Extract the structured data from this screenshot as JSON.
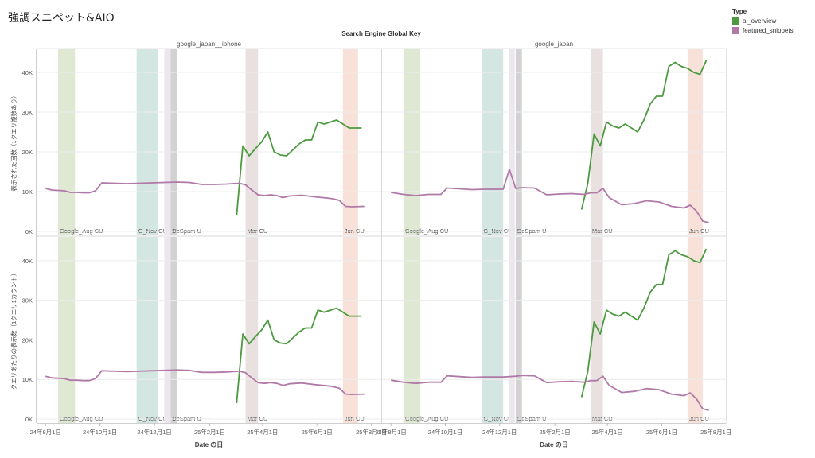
{
  "page_title": "強調スニペット&AIO",
  "legend": {
    "title": "Type",
    "items": [
      {
        "label": "ai_overview",
        "color": "#4c9a3f"
      },
      {
        "label": "featured_snippets",
        "color": "#b079a7"
      }
    ]
  },
  "chart_data": {
    "type": "line",
    "column_header_title": "Search Engine Global Key",
    "columns": [
      "google_japan__iphone",
      "google_japan"
    ],
    "row_labels": [
      "表示された回数（1クエリ複数あり）",
      "クエリあたりの表示数（1クエリ1カウント）"
    ],
    "xlabel": "Date の日",
    "x_ticks": [
      "24年8月1日",
      "24年10月1日",
      "24年12月1日",
      "25年2月1日",
      "25年4月1日",
      "25年6月1日",
      "25年8月1日"
    ],
    "y_ticks": [
      "0K",
      "10K",
      "20K",
      "30K",
      "40K"
    ],
    "ylim": [
      0,
      45000
    ],
    "x_range": [
      "2024-07-22",
      "2025-08-12"
    ],
    "grid": true,
    "bands": [
      {
        "label": "Google_Aug CU",
        "start": "2024-08-15",
        "end": "2024-09-03",
        "color": "#dfe8d3"
      },
      {
        "label": "G_Nov CU",
        "start": "2024-11-11",
        "end": "2024-12-05",
        "color": "#d3e6e2"
      },
      {
        "label": "",
        "start": "2024-12-12",
        "end": "2024-12-18",
        "color": "#ece6ee"
      },
      {
        "label": "DeSpam U",
        "start": "2024-12-19",
        "end": "2024-12-26",
        "color": "#d2d2d2"
      },
      {
        "label": "Mar CU",
        "start": "2025-03-13",
        "end": "2025-03-27",
        "color": "#e8e1e0"
      },
      {
        "label": "Jun CU",
        "start": "2025-06-30",
        "end": "2025-07-17",
        "color": "#f8e1d8"
      }
    ],
    "panels": [
      {
        "column": "google_japan__iphone",
        "row": "表示された回数（1クエリ複数あり）",
        "series": [
          {
            "name": "ai_overview",
            "x": [
              "2025-03-03",
              "2025-03-10",
              "2025-03-17",
              "2025-03-24",
              "2025-03-31",
              "2025-04-07",
              "2025-04-14",
              "2025-04-21",
              "2025-04-28",
              "2025-05-05",
              "2025-05-12",
              "2025-05-19",
              "2025-05-26",
              "2025-06-02",
              "2025-06-09",
              "2025-06-16",
              "2025-06-23",
              "2025-06-30",
              "2025-07-07",
              "2025-07-14",
              "2025-07-21"
            ],
            "values": [
              4000,
              21500,
              19000,
              20800,
              22500,
              25000,
              20000,
              19200,
              19000,
              20500,
              22000,
              23000,
              23000,
              27500,
              27000,
              27500,
              28000,
              27000,
              26000,
              26000,
              26000
            ]
          },
          {
            "name": "featured_snippets",
            "x": [
              "2024-08-01",
              "2024-08-08",
              "2024-08-15",
              "2024-08-22",
              "2024-08-29",
              "2024-09-05",
              "2024-09-12",
              "2024-09-19",
              "2024-09-26",
              "2024-10-03",
              "2024-10-17",
              "2024-10-31",
              "2024-11-14",
              "2024-11-28",
              "2024-12-12",
              "2024-12-26",
              "2025-01-09",
              "2025-01-23",
              "2025-02-06",
              "2025-02-20",
              "2025-03-06",
              "2025-03-13",
              "2025-03-20",
              "2025-03-27",
              "2025-04-03",
              "2025-04-10",
              "2025-04-17",
              "2025-04-24",
              "2025-05-01",
              "2025-05-15",
              "2025-05-29",
              "2025-06-12",
              "2025-06-19",
              "2025-06-26",
              "2025-07-03",
              "2025-07-10",
              "2025-07-24"
            ],
            "values": [
              10800,
              10400,
              10300,
              10200,
              9800,
              9800,
              9700,
              9700,
              10200,
              12200,
              12100,
              12000,
              12100,
              12200,
              12300,
              12400,
              12300,
              11800,
              11800,
              11900,
              12100,
              11700,
              10400,
              9200,
              9000,
              9200,
              9000,
              8500,
              8900,
              9100,
              8700,
              8400,
              8200,
              7800,
              6300,
              6200,
              6300
            ]
          }
        ]
      },
      {
        "column": "google_japan",
        "row": "表示された回数（1クエリ複数あり）",
        "series": [
          {
            "name": "ai_overview",
            "x": [
              "2025-03-03",
              "2025-03-10",
              "2025-03-17",
              "2025-03-24",
              "2025-03-31",
              "2025-04-07",
              "2025-04-14",
              "2025-04-21",
              "2025-04-28",
              "2025-05-05",
              "2025-05-12",
              "2025-05-19",
              "2025-05-26",
              "2025-06-02",
              "2025-06-09",
              "2025-06-16",
              "2025-06-23",
              "2025-06-30",
              "2025-07-07",
              "2025-07-14",
              "2025-07-21"
            ],
            "values": [
              5500,
              12000,
              24500,
              21500,
              27500,
              26500,
              26000,
              27000,
              26000,
              25000,
              28000,
              32000,
              34000,
              34000,
              41500,
              42500,
              41500,
              41000,
              40000,
              39500,
              43000
            ]
          },
          {
            "name": "featured_snippets",
            "x": [
              "2024-08-01",
              "2024-08-15",
              "2024-08-29",
              "2024-09-12",
              "2024-09-26",
              "2024-10-03",
              "2024-10-17",
              "2024-10-31",
              "2024-11-14",
              "2024-11-28",
              "2024-12-05",
              "2024-12-12",
              "2024-12-19",
              "2024-12-26",
              "2025-01-09",
              "2025-01-23",
              "2025-02-06",
              "2025-02-20",
              "2025-03-06",
              "2025-03-13",
              "2025-03-20",
              "2025-03-27",
              "2025-04-03",
              "2025-04-17",
              "2025-05-01",
              "2025-05-15",
              "2025-05-29",
              "2025-06-12",
              "2025-06-19",
              "2025-06-26",
              "2025-07-03",
              "2025-07-10",
              "2025-07-17",
              "2025-07-24"
            ],
            "values": [
              9800,
              9300,
              9000,
              9300,
              9300,
              10900,
              10700,
              10500,
              10600,
              10600,
              10600,
              15600,
              10800,
              11000,
              10900,
              9200,
              9400,
              9500,
              9300,
              9700,
              9700,
              10800,
              8500,
              6700,
              7000,
              7700,
              7400,
              6300,
              6100,
              5900,
              6600,
              5100,
              2600,
              2200
            ]
          }
        ]
      },
      {
        "column": "google_japan__iphone",
        "row": "クエリあたりの表示数（1クエリ1カウント）",
        "series": [
          {
            "name": "ai_overview",
            "x": [
              "2025-03-03",
              "2025-03-10",
              "2025-03-17",
              "2025-03-24",
              "2025-03-31",
              "2025-04-07",
              "2025-04-14",
              "2025-04-21",
              "2025-04-28",
              "2025-05-05",
              "2025-05-12",
              "2025-05-19",
              "2025-05-26",
              "2025-06-02",
              "2025-06-09",
              "2025-06-16",
              "2025-06-23",
              "2025-06-30",
              "2025-07-07",
              "2025-07-14",
              "2025-07-21"
            ],
            "values": [
              4000,
              21500,
              19000,
              20800,
              22500,
              25000,
              20000,
              19200,
              19000,
              20500,
              22000,
              23000,
              23000,
              27500,
              27000,
              27500,
              28000,
              27000,
              26000,
              26000,
              26000
            ]
          },
          {
            "name": "featured_snippets",
            "x": [
              "2024-08-01",
              "2024-08-08",
              "2024-08-15",
              "2024-08-22",
              "2024-08-29",
              "2024-09-05",
              "2024-09-12",
              "2024-09-19",
              "2024-09-26",
              "2024-10-03",
              "2024-10-17",
              "2024-10-31",
              "2024-11-14",
              "2024-11-28",
              "2024-12-12",
              "2024-12-26",
              "2025-01-09",
              "2025-01-23",
              "2025-02-06",
              "2025-02-20",
              "2025-03-06",
              "2025-03-13",
              "2025-03-20",
              "2025-03-27",
              "2025-04-03",
              "2025-04-10",
              "2025-04-17",
              "2025-04-24",
              "2025-05-01",
              "2025-05-15",
              "2025-05-29",
              "2025-06-12",
              "2025-06-19",
              "2025-06-26",
              "2025-07-03",
              "2025-07-10",
              "2025-07-24"
            ],
            "values": [
              10800,
              10400,
              10300,
              10200,
              9800,
              9800,
              9700,
              9700,
              10200,
              12200,
              12100,
              12000,
              12100,
              12200,
              12300,
              12400,
              12300,
              11800,
              11800,
              11900,
              12100,
              11700,
              10400,
              9200,
              9000,
              9200,
              9000,
              8500,
              8900,
              9100,
              8700,
              8400,
              8200,
              7800,
              6300,
              6200,
              6300
            ]
          }
        ]
      },
      {
        "column": "google_japan",
        "row": "クエリあたりの表示数（1クエリ1カウント）",
        "series": [
          {
            "name": "ai_overview",
            "x": [
              "2025-03-03",
              "2025-03-10",
              "2025-03-17",
              "2025-03-24",
              "2025-03-31",
              "2025-04-07",
              "2025-04-14",
              "2025-04-21",
              "2025-04-28",
              "2025-05-05",
              "2025-05-12",
              "2025-05-19",
              "2025-05-26",
              "2025-06-02",
              "2025-06-09",
              "2025-06-16",
              "2025-06-23",
              "2025-06-30",
              "2025-07-07",
              "2025-07-14",
              "2025-07-21"
            ],
            "values": [
              5500,
              12000,
              24500,
              21500,
              27500,
              26500,
              26000,
              27000,
              26000,
              25000,
              28000,
              32000,
              34000,
              34000,
              41500,
              42500,
              41500,
              41000,
              40000,
              39500,
              43000
            ]
          },
          {
            "name": "featured_snippets",
            "x": [
              "2024-08-01",
              "2024-08-15",
              "2024-08-29",
              "2024-09-12",
              "2024-09-26",
              "2024-10-03",
              "2024-10-17",
              "2024-10-31",
              "2024-11-14",
              "2024-11-28",
              "2024-12-05",
              "2024-12-12",
              "2024-12-19",
              "2024-12-26",
              "2025-01-09",
              "2025-01-23",
              "2025-02-06",
              "2025-02-20",
              "2025-03-06",
              "2025-03-13",
              "2025-03-20",
              "2025-03-27",
              "2025-04-03",
              "2025-04-17",
              "2025-05-01",
              "2025-05-15",
              "2025-05-29",
              "2025-06-12",
              "2025-06-19",
              "2025-06-26",
              "2025-07-03",
              "2025-07-10",
              "2025-07-17",
              "2025-07-24"
            ],
            "values": [
              9800,
              9300,
              9000,
              9300,
              9300,
              10900,
              10700,
              10500,
              10600,
              10600,
              10600,
              10700,
              10800,
              11000,
              10900,
              9200,
              9400,
              9500,
              9300,
              9700,
              9700,
              10800,
              8500,
              6700,
              7000,
              7700,
              7400,
              6300,
              6100,
              5900,
              6600,
              5100,
              2600,
              2200
            ]
          }
        ]
      }
    ]
  }
}
